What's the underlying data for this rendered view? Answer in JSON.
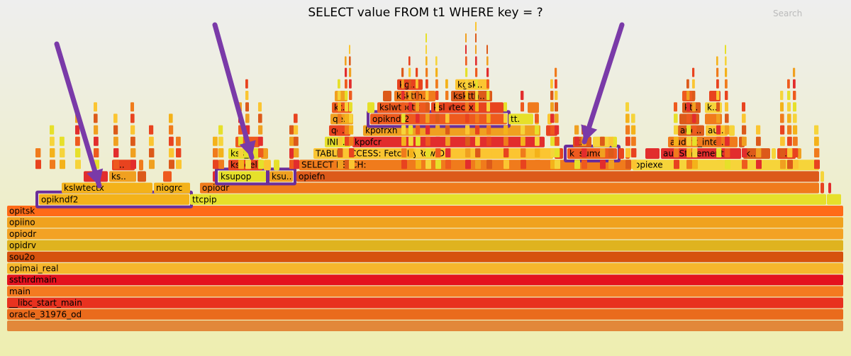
{
  "chart_data": {
    "type": "flamegraph",
    "title": "SELECT value FROM t1 WHERE key = ?",
    "search_label": "Search",
    "colors": {
      "highlight": "#6b2e9a",
      "arrow": "#7a3aa8"
    },
    "frames": [
      {
        "label": "",
        "x0": 0,
        "x1": 1179,
        "depth": 0
      },
      {
        "label": "oracle_31976_od",
        "x0": 0,
        "x1": 1179,
        "depth": 1
      },
      {
        "label": "__libc_start_main",
        "x0": 0,
        "x1": 1179,
        "depth": 2
      },
      {
        "label": "main",
        "x0": 0,
        "x1": 1179,
        "depth": 3
      },
      {
        "label": "ssthrdmain",
        "x0": 0,
        "x1": 1179,
        "depth": 4
      },
      {
        "label": "opimai_real",
        "x0": 0,
        "x1": 1179,
        "depth": 5
      },
      {
        "label": "sou2o",
        "x0": 0,
        "x1": 1179,
        "depth": 6
      },
      {
        "label": "opidrv",
        "x0": 0,
        "x1": 1179,
        "depth": 7
      },
      {
        "label": "opiodr",
        "x0": 0,
        "x1": 1179,
        "depth": 8
      },
      {
        "label": "opiino",
        "x0": 0,
        "x1": 1179,
        "depth": 9
      },
      {
        "label": "opitsk",
        "x0": 0,
        "x1": 1179,
        "depth": 10
      },
      {
        "label": "opikndf2",
        "x0": 45,
        "x1": 257,
        "depth": 11
      },
      {
        "label": "ttcpip",
        "x0": 258,
        "x1": 1155,
        "depth": 11
      },
      {
        "label": "",
        "x0": 1156,
        "x1": 1176,
        "depth": 11
      },
      {
        "label": "kslwtectx",
        "x0": 77,
        "x1": 205,
        "depth": 12
      },
      {
        "label": "niogrc",
        "x0": 207,
        "x1": 258,
        "depth": 12
      },
      {
        "label": "opiodr",
        "x0": 272,
        "x1": 1145,
        "depth": 12
      },
      {
        "label": "",
        "x0": 1147,
        "x1": 1152,
        "depth": 12
      },
      {
        "label": "",
        "x0": 1158,
        "x1": 1162,
        "depth": 12
      },
      {
        "label": "",
        "x0": 108,
        "x1": 142,
        "depth": 13
      },
      {
        "label": "ks..",
        "x0": 144,
        "x1": 182,
        "depth": 13
      },
      {
        "label": "",
        "x0": 184,
        "x1": 196,
        "depth": 13
      },
      {
        "label": "",
        "x0": 220,
        "x1": 232,
        "depth": 13
      },
      {
        "label": "",
        "x0": 290,
        "x1": 296,
        "depth": 13
      },
      {
        "label": "ksupop",
        "x0": 298,
        "x1": 365,
        "depth": 13
      },
      {
        "label": "ksu..",
        "x0": 370,
        "x1": 403,
        "depth": 13
      },
      {
        "label": "opiefn",
        "x0": 408,
        "x1": 1145,
        "depth": 13
      },
      {
        "label": "",
        "x0": 1147,
        "x1": 1152,
        "depth": 13
      },
      {
        "label": "k..",
        "x0": 148,
        "x1": 180,
        "depth": 14
      },
      {
        "label": "",
        "x0": 186,
        "x1": 192,
        "depth": 14
      },
      {
        "label": "kssdel",
        "x0": 312,
        "x1": 360,
        "depth": 14
      },
      {
        "label": "",
        "x0": 362,
        "x1": 372,
        "depth": 14
      },
      {
        "label": "",
        "x0": 376,
        "x1": 384,
        "depth": 14
      },
      {
        "label": "SELECT FETCH:",
        "x0": 412,
        "x1": 880,
        "depth": 14
      },
      {
        "label": "opiexe",
        "x0": 882,
        "x1": 1145,
        "depth": 14
      },
      {
        "label": "kss_..",
        "x0": 312,
        "x1": 356,
        "depth": 15
      },
      {
        "label": "",
        "x0": 358,
        "x1": 368,
        "depth": 15
      },
      {
        "label": "",
        "x0": 398,
        "x1": 404,
        "depth": 15
      },
      {
        "label": "TABLE ACCESS: FetchByRowID",
        "x0": 432,
        "x1": 770,
        "depth": 15
      },
      {
        "label": "",
        "x0": 772,
        "x1": 784,
        "depth": 15
      },
      {
        "label": "kksumc",
        "x0": 790,
        "x1": 860,
        "depth": 15
      },
      {
        "label": "",
        "x0": 862,
        "x1": 870,
        "depth": 15
      },
      {
        "label": "",
        "x0": 872,
        "x1": 878,
        "depth": 15
      },
      {
        "label": "",
        "x0": 900,
        "x1": 920,
        "depth": 15
      },
      {
        "label": "audStatement",
        "x0": 922,
        "x1": 1035,
        "depth": 15
      },
      {
        "label": "k..",
        "x0": 1038,
        "x1": 1076,
        "depth": 15
      },
      {
        "label": "",
        "x0": 1078,
        "x1": 1084,
        "depth": 15
      },
      {
        "label": "k..",
        "x0": 1086,
        "x1": 1112,
        "depth": 15
      },
      {
        "label": "",
        "x0": 1114,
        "x1": 1120,
        "depth": 15
      },
      {
        "label": "k..",
        "x0": 322,
        "x1": 356,
        "depth": 16
      },
      {
        "label": "IND..",
        "x0": 448,
        "x1": 484,
        "depth": 16
      },
      {
        "label": "kpofcr",
        "x0": 487,
        "x1": 758,
        "depth": 16
      },
      {
        "label": "k..",
        "x0": 798,
        "x1": 824,
        "depth": 16
      },
      {
        "label": "",
        "x0": 826,
        "x1": 850,
        "depth": 16
      },
      {
        "label": "",
        "x0": 852,
        "x1": 860,
        "depth": 16
      },
      {
        "label": "auddft_inte..",
        "x0": 932,
        "x1": 1030,
        "depth": 16
      },
      {
        "label": "",
        "x0": 1032,
        "x1": 1040,
        "depth": 16
      },
      {
        "label": "qe..",
        "x0": 454,
        "x1": 484,
        "depth": 17
      },
      {
        "label": "kpofrxh",
        "x0": 502,
        "x1": 752,
        "depth": 17
      },
      {
        "label": "",
        "x0": 760,
        "x1": 776,
        "depth": 17
      },
      {
        "label": "aud..",
        "x0": 946,
        "x1": 983,
        "depth": 17
      },
      {
        "label": "au..",
        "x0": 985,
        "x1": 1016,
        "depth": 17
      },
      {
        "label": "",
        "x0": 1018,
        "x1": 1026,
        "depth": 17
      },
      {
        "label": "qe..",
        "x0": 456,
        "x1": 488,
        "depth": 18
      },
      {
        "label": "opikndf2",
        "x0": 512,
        "x1": 705,
        "depth": 18
      },
      {
        "label": "tt..",
        "x0": 707,
        "x1": 742,
        "depth": 18
      },
      {
        "label": "",
        "x0": 744,
        "x1": 750,
        "depth": 18
      },
      {
        "label": "",
        "x0": 762,
        "x1": 768,
        "depth": 18
      },
      {
        "label": "",
        "x0": 948,
        "x1": 976,
        "depth": 18
      },
      {
        "label": "",
        "x0": 984,
        "x1": 1008,
        "depth": 18
      },
      {
        "label": "kt..",
        "x0": 458,
        "x1": 486,
        "depth": 19
      },
      {
        "label": "",
        "x0": 508,
        "x1": 518,
        "depth": 19
      },
      {
        "label": "kslwtbctx",
        "x0": 522,
        "x1": 596,
        "depth": 19
      },
      {
        "label": "kslwtectx",
        "x0": 598,
        "x1": 700,
        "depth": 19
      },
      {
        "label": "",
        "x0": 734,
        "x1": 750,
        "depth": 19
      },
      {
        "label": "kt..",
        "x0": 952,
        "x1": 978,
        "depth": 19
      },
      {
        "label": "k..",
        "x0": 984,
        "x1": 1008,
        "depth": 19
      },
      {
        "label": "",
        "x0": 462,
        "x1": 480,
        "depth": 20
      },
      {
        "label": "",
        "x0": 530,
        "x1": 542,
        "depth": 20
      },
      {
        "label": "ksktth..",
        "x0": 546,
        "x1": 604,
        "depth": 20
      },
      {
        "label": "ksktth..",
        "x0": 626,
        "x1": 684,
        "depth": 20
      },
      {
        "label": "",
        "x0": 952,
        "x1": 970,
        "depth": 20
      },
      {
        "label": "",
        "x0": 990,
        "x1": 1006,
        "depth": 20
      },
      {
        "label": "kg..",
        "x0": 550,
        "x1": 586,
        "depth": 21
      },
      {
        "label": "kgsk..",
        "x0": 632,
        "x1": 680,
        "depth": 21
      }
    ],
    "highlighted_frames": [
      "opikndf2",
      "ksupop",
      "ksu..",
      "kksumc"
    ]
  }
}
